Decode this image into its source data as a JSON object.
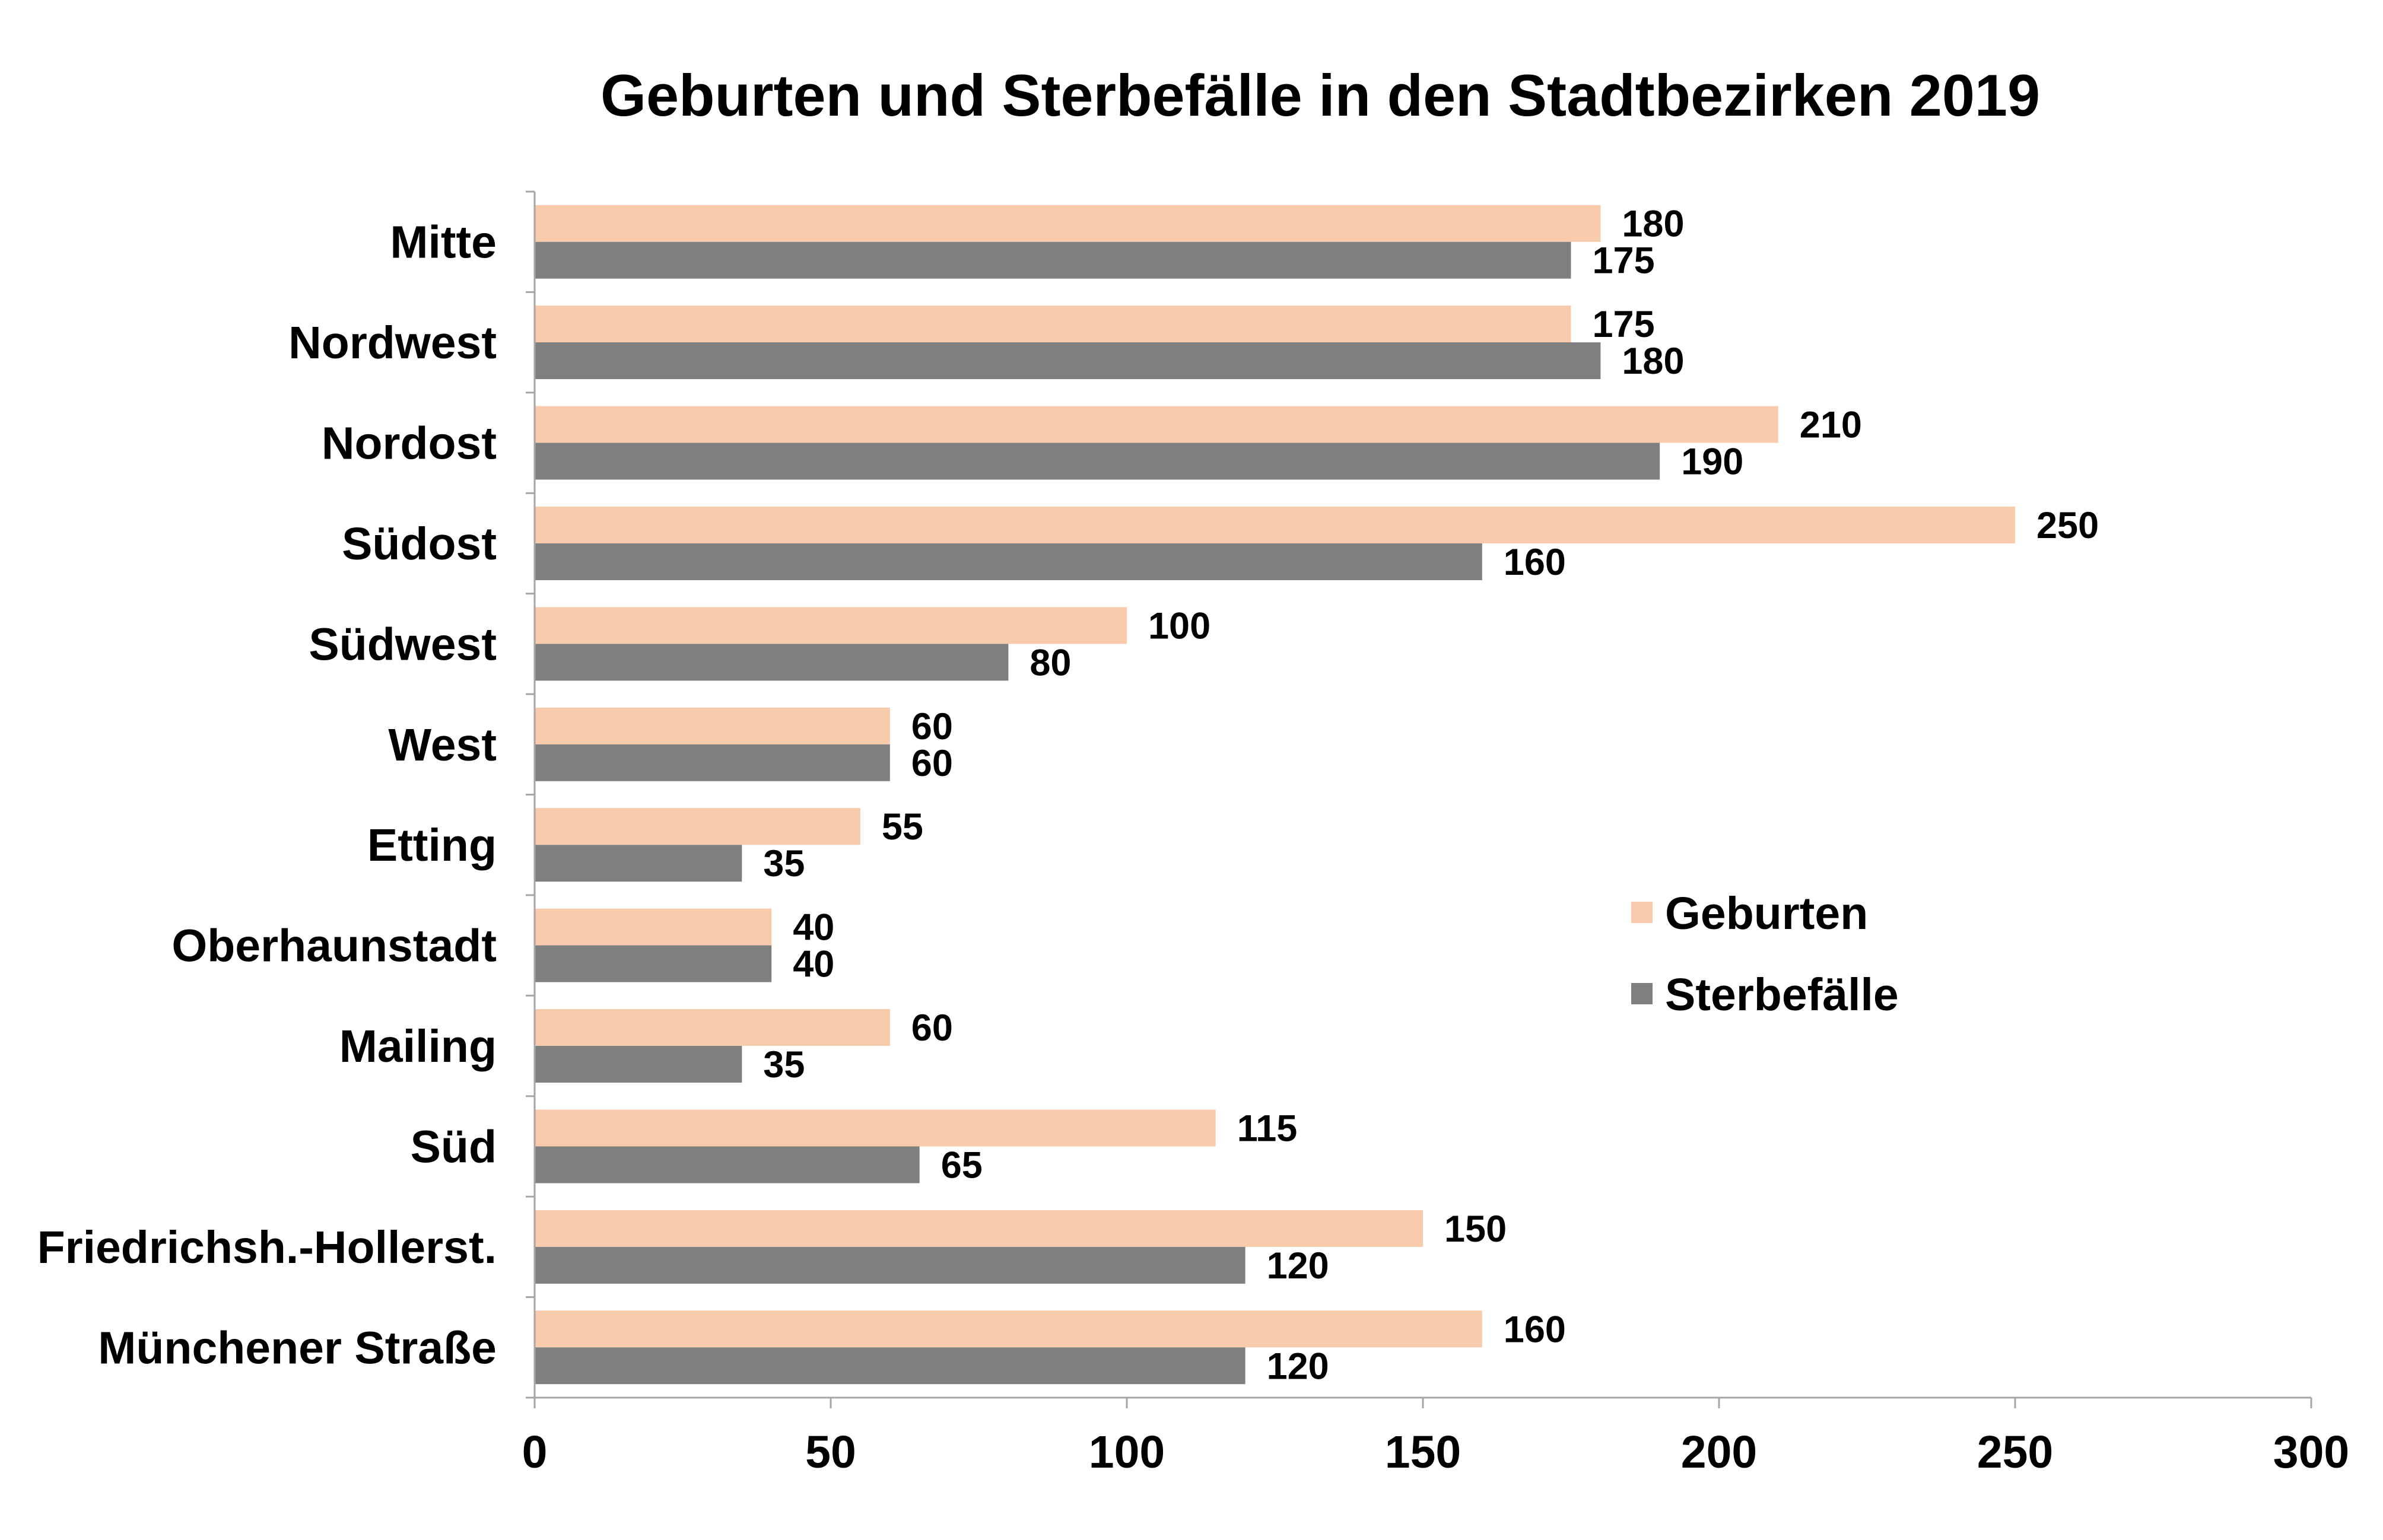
{
  "chart_data": {
    "type": "bar",
    "orientation": "horizontal",
    "title": "Geburten und Sterbefälle in den Stadtbezirken 2019",
    "categories": [
      "Mitte",
      "Nordwest",
      "Nordost",
      "Südost",
      "Südwest",
      "West",
      "Etting",
      "Oberhaunstadt",
      "Mailing",
      "Süd",
      "Friedrichsh.-Hollerst.",
      "Münchener Straße"
    ],
    "series": [
      {
        "name": "Geburten",
        "color": "#F8CBAD",
        "values": [
          180,
          175,
          210,
          250,
          100,
          60,
          55,
          40,
          60,
          115,
          150,
          160
        ]
      },
      {
        "name": "Sterbefälle",
        "color": "#7F7F7F",
        "values": [
          175,
          180,
          190,
          160,
          80,
          60,
          35,
          40,
          35,
          65,
          120,
          120
        ]
      }
    ],
    "xlim": [
      0,
      300
    ],
    "xticks": [
      0,
      50,
      100,
      150,
      200,
      250,
      300
    ],
    "grid": false,
    "legend": "center-right",
    "data_labels": true
  }
}
